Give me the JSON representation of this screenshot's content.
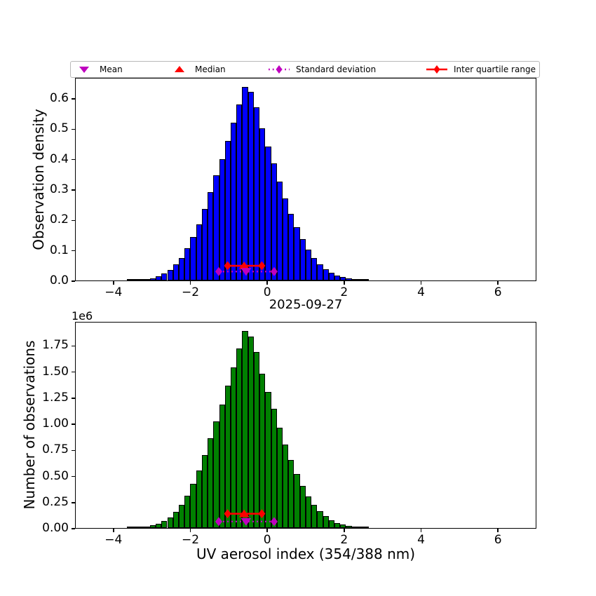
{
  "title": "2025-09-27",
  "legend": {
    "items": [
      {
        "label": "Mean",
        "marker": "triangle-down-icon",
        "color": "#bf00bf"
      },
      {
        "label": "Median",
        "marker": "triangle-up-icon",
        "color": "#ff0000"
      },
      {
        "label": "Standard deviation",
        "marker": "diamond-on-dotted-line-icon",
        "color": "#bf00bf"
      },
      {
        "label": "Inter quartile range",
        "marker": "diamond-on-solid-line-icon",
        "color": "#ff0000"
      }
    ]
  },
  "top_plot": {
    "ylabel": "Observation density"
  },
  "bottom_plot": {
    "ylabel": "Number of observations",
    "xlabel": "UV aerosol index (354/388 nm)",
    "y_offset_label": "1e6",
    "title": "2025-09-27"
  },
  "chart_data": [
    {
      "type": "bar",
      "subplot": "top",
      "ylabel": "Observation density",
      "bar_color": "#0000ff",
      "bar_edge_color": "#000000",
      "bin_start": -3.67,
      "bin_width": 0.15,
      "values": [
        0.0008,
        0.0015,
        0.003,
        0.005,
        0.008,
        0.014,
        0.022,
        0.035,
        0.052,
        0.075,
        0.105,
        0.142,
        0.185,
        0.235,
        0.29,
        0.345,
        0.4,
        0.46,
        0.52,
        0.58,
        0.637,
        0.62,
        0.57,
        0.5,
        0.44,
        0.385,
        0.325,
        0.27,
        0.22,
        0.175,
        0.135,
        0.102,
        0.075,
        0.054,
        0.038,
        0.026,
        0.017,
        0.011,
        0.007,
        0.004,
        0.0025,
        0.0015
      ],
      "xlim": [
        -5,
        7.0
      ],
      "ylim": [
        0,
        0.669
      ],
      "xticks": [
        -4,
        -2,
        0,
        2,
        4,
        6
      ],
      "xtick_labels": [
        "−4",
        "−2",
        "0",
        "2",
        "4",
        "6"
      ],
      "yticks": [
        0,
        0.1,
        0.2,
        0.3,
        0.4,
        0.5,
        0.6
      ],
      "ytick_labels": [
        "0.0",
        "0.1",
        "0.2",
        "0.3",
        "0.4",
        "0.5",
        "0.6"
      ],
      "grid": false,
      "overlay_stats": {
        "mean": -0.57,
        "median": -0.62,
        "iqr": [
          -1.05,
          -0.16
        ],
        "std_range": [
          -1.28,
          0.16
        ],
        "iqr_marker_y": 0.053,
        "std_marker_y": 0.034,
        "mean_color": "#bf00bf",
        "median_color": "#ff0000"
      }
    },
    {
      "type": "bar",
      "subplot": "bottom",
      "title": "2025-09-27",
      "ylabel": "Number of observations",
      "xlabel": "UV aerosol index (354/388 nm)",
      "y_unit_multiplier": "1e6",
      "bar_color": "#008000",
      "bar_edge_color": "#000000",
      "bin_start": -3.67,
      "bin_width": 0.15,
      "values": [
        0.002,
        0.004,
        0.009,
        0.015,
        0.024,
        0.041,
        0.065,
        0.104,
        0.154,
        0.222,
        0.311,
        0.42,
        0.548,
        0.696,
        0.858,
        1.021,
        1.184,
        1.362,
        1.539,
        1.717,
        1.885,
        1.835,
        1.687,
        1.48,
        1.302,
        1.14,
        0.962,
        0.799,
        0.651,
        0.518,
        0.4,
        0.302,
        0.222,
        0.16,
        0.112,
        0.077,
        0.05,
        0.033,
        0.021,
        0.012,
        0.007,
        0.004
      ],
      "xlim": [
        -5,
        7.0
      ],
      "ylim": [
        0,
        1.98
      ],
      "xticks": [
        -4,
        -2,
        0,
        2,
        4,
        6
      ],
      "xtick_labels": [
        "−4",
        "−2",
        "0",
        "2",
        "4",
        "6"
      ],
      "yticks": [
        0,
        0.25,
        0.5,
        0.75,
        1.0,
        1.25,
        1.5,
        1.75
      ],
      "ytick_labels": [
        "0.00",
        "0.25",
        "0.50",
        "0.75",
        "1.00",
        "1.25",
        "1.50",
        "1.75"
      ],
      "grid": false,
      "overlay_stats": {
        "mean": -0.57,
        "median": -0.62,
        "iqr": [
          -1.05,
          -0.16
        ],
        "std_range": [
          -1.28,
          0.16
        ],
        "iqr_marker_y": 0.15,
        "std_marker_y": 0.075,
        "mean_color": "#bf00bf",
        "median_color": "#ff0000"
      }
    }
  ]
}
